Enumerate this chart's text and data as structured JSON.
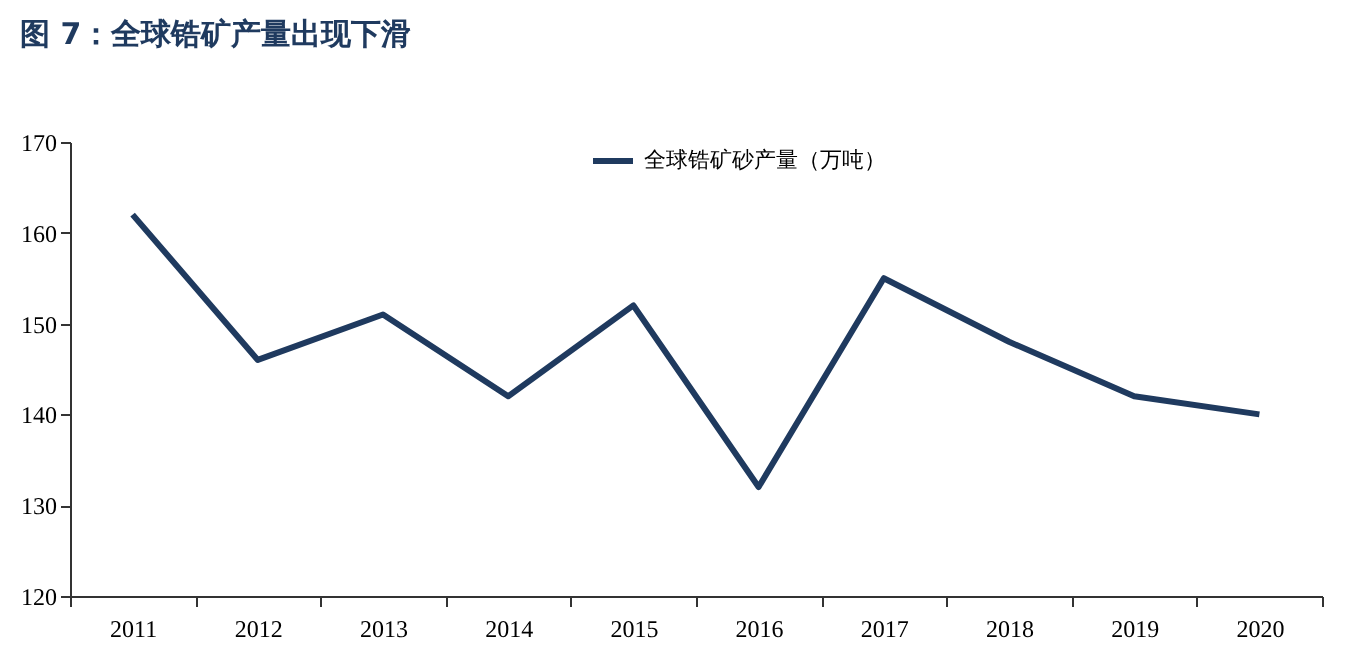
{
  "chart_data": {
    "type": "line",
    "title": "图 7：全球锆矿产量出现下滑",
    "categories": [
      "2011",
      "2012",
      "2013",
      "2014",
      "2015",
      "2016",
      "2017",
      "2018",
      "2019",
      "2020"
    ],
    "series": [
      {
        "name": "全球锆矿砂产量（万吨）",
        "color": "#1f3a5f",
        "values": [
          162,
          146,
          151,
          142,
          152,
          132,
          155,
          148,
          142,
          140
        ]
      }
    ],
    "ylim": [
      120,
      170
    ],
    "yticks": [
      120,
      130,
      140,
      150,
      160,
      170
    ],
    "grid": false,
    "legend": "top",
    "marker": "none",
    "line_style": "solid"
  }
}
